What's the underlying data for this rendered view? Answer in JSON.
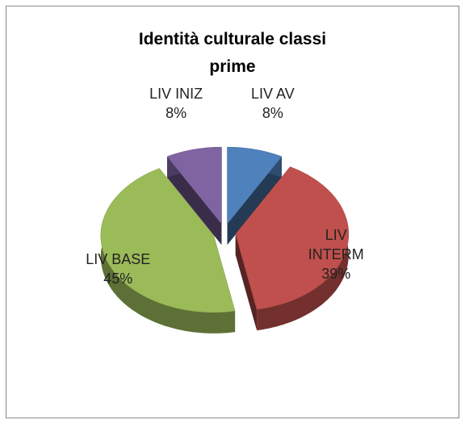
{
  "chart_data": {
    "type": "pie",
    "title": "Identità culturale classi prime",
    "categories": [
      "LIV AV",
      "LIV INTERM",
      "LIV BASE",
      "LIV INIZ"
    ],
    "values": [
      8,
      39,
      45,
      8
    ],
    "value_labels": [
      "8%",
      "39%",
      "45%",
      "8%"
    ],
    "colors": [
      "#4f81bd",
      "#c0504d",
      "#9bbb59",
      "#8064a2"
    ]
  }
}
